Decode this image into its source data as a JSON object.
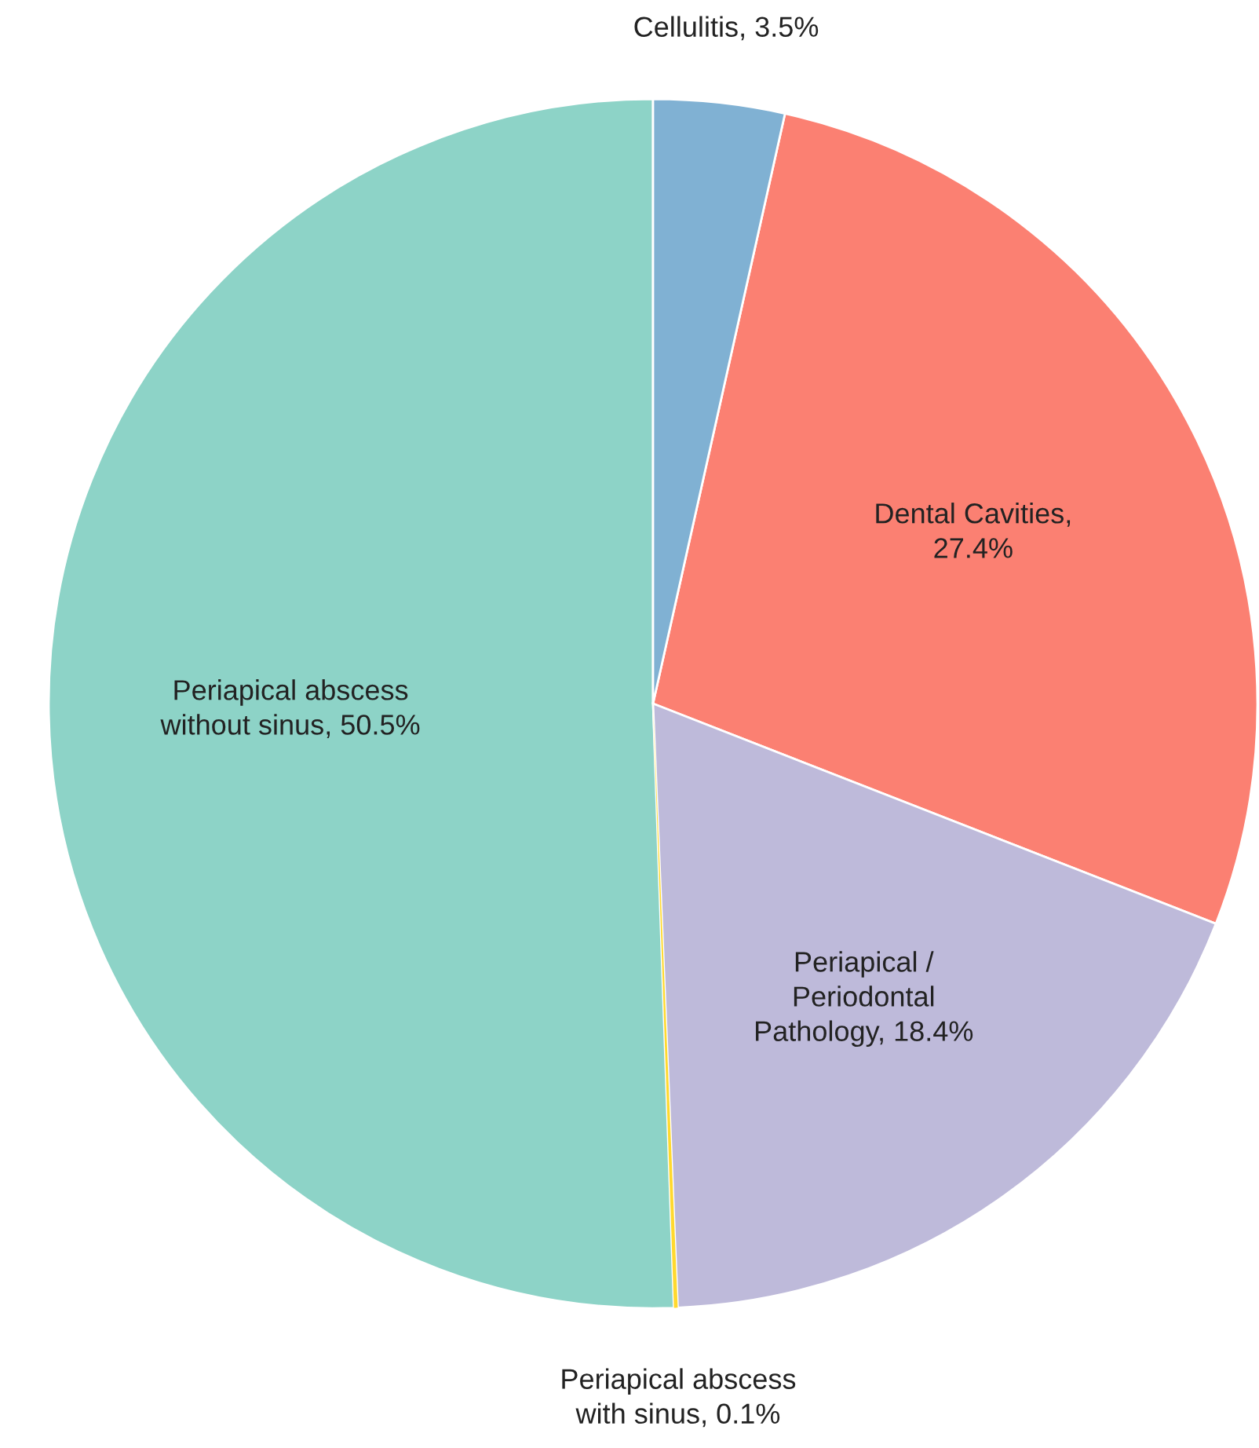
{
  "chart_data": {
    "type": "pie",
    "categories": [
      "Cellulitis, 3.5%",
      "Dental Cavities, 27.4%",
      "Periapical / Periodontal Pathology, 18.4%",
      "Periapical abscess with sinus, 0.1%",
      "Periapical abscess without sinus, 50.5%"
    ],
    "values": [
      3.5,
      27.4,
      18.4,
      0.1,
      50.5
    ],
    "colors": [
      "#80b1d3",
      "#fb8072",
      "#bebada",
      "#ffd92f",
      "#8dd3c7"
    ]
  }
}
